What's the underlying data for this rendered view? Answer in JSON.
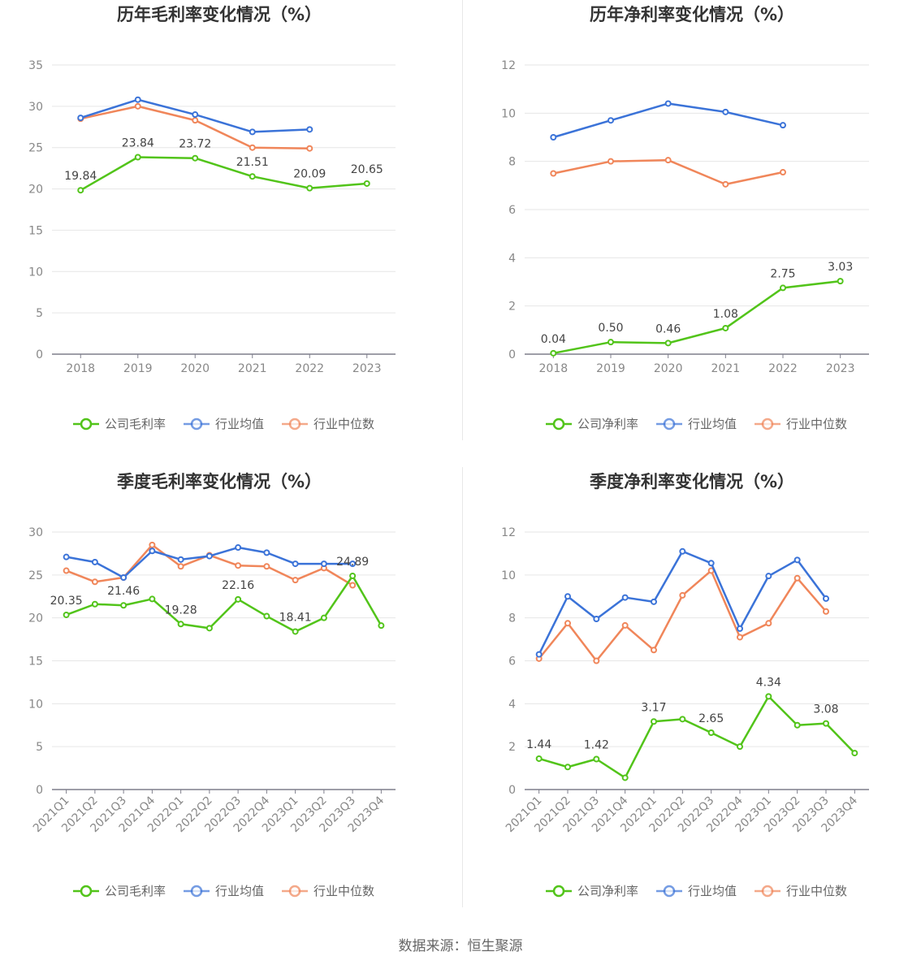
{
  "colors": {
    "company": "#52c41a",
    "industry_avg": "#3b73d8",
    "industry_median": "#f0865a"
  },
  "legend_icon": "circle-line-icon",
  "source": "数据来源：恒生聚源",
  "chart_data": [
    {
      "id": "annual-gross",
      "type": "line",
      "title": "历年毛利率变化情况（%）",
      "categories": [
        "2018",
        "2019",
        "2020",
        "2021",
        "2022",
        "2023"
      ],
      "ylim": [
        0,
        35
      ],
      "yticks": [
        0,
        5,
        10,
        15,
        20,
        25,
        30,
        35
      ],
      "grid": true,
      "legend_position": "bottom",
      "rotate_x_labels": false,
      "series": [
        {
          "name": "公司毛利率",
          "key": "company",
          "values": [
            19.84,
            23.84,
            23.72,
            21.51,
            20.09,
            20.65
          ],
          "labels": [
            "19.84",
            "23.84",
            "23.72",
            "21.51",
            "20.09",
            "20.65"
          ]
        },
        {
          "name": "行业均值",
          "key": "industry_avg",
          "values": [
            28.6,
            30.8,
            29.0,
            26.9,
            27.2,
            null
          ]
        },
        {
          "name": "行业中位数",
          "key": "industry_median",
          "values": [
            28.5,
            30.0,
            28.3,
            25.0,
            24.9,
            null
          ]
        }
      ]
    },
    {
      "id": "annual-net",
      "type": "line",
      "title": "历年净利率变化情况（%）",
      "categories": [
        "2018",
        "2019",
        "2020",
        "2021",
        "2022",
        "2023"
      ],
      "ylim": [
        0,
        12
      ],
      "yticks": [
        0,
        2,
        4,
        6,
        8,
        10,
        12
      ],
      "grid": true,
      "legend_position": "bottom",
      "rotate_x_labels": false,
      "series": [
        {
          "name": "公司净利率",
          "key": "company",
          "values": [
            0.04,
            0.5,
            0.46,
            1.08,
            2.75,
            3.03
          ],
          "labels": [
            "0.04",
            "0.50",
            "0.46",
            "1.08",
            "2.75",
            "3.03"
          ]
        },
        {
          "name": "行业均值",
          "key": "industry_avg",
          "values": [
            9.0,
            9.7,
            10.4,
            10.05,
            9.5,
            null
          ]
        },
        {
          "name": "行业中位数",
          "key": "industry_median",
          "values": [
            7.5,
            8.0,
            8.05,
            7.05,
            7.55,
            null
          ]
        }
      ]
    },
    {
      "id": "quarterly-gross",
      "type": "line",
      "title": "季度毛利率变化情况（%）",
      "categories": [
        "2021Q1",
        "2021Q2",
        "2021Q3",
        "2021Q4",
        "2022Q1",
        "2022Q2",
        "2022Q3",
        "2022Q4",
        "2023Q1",
        "2023Q2",
        "2023Q3",
        "2023Q4"
      ],
      "ylim": [
        0,
        30
      ],
      "yticks": [
        0,
        5,
        10,
        15,
        20,
        25,
        30
      ],
      "grid": true,
      "legend_position": "bottom",
      "rotate_x_labels": true,
      "series": [
        {
          "name": "公司毛利率",
          "key": "company",
          "values": [
            20.35,
            21.6,
            21.46,
            22.2,
            19.28,
            18.8,
            22.16,
            20.2,
            18.41,
            20.0,
            24.89,
            19.1
          ],
          "labels": [
            "20.35",
            null,
            "21.46",
            null,
            "19.28",
            null,
            "22.16",
            null,
            "18.41",
            null,
            "24.89",
            null
          ]
        },
        {
          "name": "行业均值",
          "key": "industry_avg",
          "values": [
            27.1,
            26.5,
            24.7,
            27.8,
            26.8,
            27.2,
            28.2,
            27.6,
            26.3,
            26.3,
            26.3,
            null
          ]
        },
        {
          "name": "行业中位数",
          "key": "industry_median",
          "values": [
            25.5,
            24.2,
            24.7,
            28.5,
            26.0,
            27.3,
            26.1,
            26.0,
            24.4,
            25.8,
            23.8,
            null
          ]
        }
      ]
    },
    {
      "id": "quarterly-net",
      "type": "line",
      "title": "季度净利率变化情况（%）",
      "categories": [
        "2021Q1",
        "2021Q2",
        "2021Q3",
        "2021Q4",
        "2022Q1",
        "2022Q2",
        "2022Q3",
        "2022Q4",
        "2023Q1",
        "2023Q2",
        "2023Q3",
        "2023Q4"
      ],
      "ylim": [
        0,
        12
      ],
      "yticks": [
        0,
        2,
        4,
        6,
        8,
        10,
        12
      ],
      "grid": true,
      "legend_position": "bottom",
      "rotate_x_labels": true,
      "series": [
        {
          "name": "公司净利率",
          "key": "company",
          "values": [
            1.44,
            1.05,
            1.42,
            0.55,
            3.17,
            3.28,
            2.65,
            2.0,
            4.34,
            3.0,
            3.08,
            1.7
          ],
          "labels": [
            "1.44",
            null,
            "1.42",
            null,
            "3.17",
            null,
            "2.65",
            null,
            "4.34",
            null,
            "3.08",
            null
          ]
        },
        {
          "name": "行业均值",
          "key": "industry_avg",
          "values": [
            6.3,
            9.0,
            7.95,
            8.95,
            8.75,
            11.1,
            10.55,
            7.5,
            9.95,
            10.7,
            8.9,
            null
          ]
        },
        {
          "name": "行业中位数",
          "key": "industry_median",
          "values": [
            6.1,
            7.75,
            6.0,
            7.65,
            6.5,
            9.05,
            10.2,
            7.1,
            7.75,
            9.85,
            8.3,
            null
          ]
        }
      ]
    }
  ]
}
